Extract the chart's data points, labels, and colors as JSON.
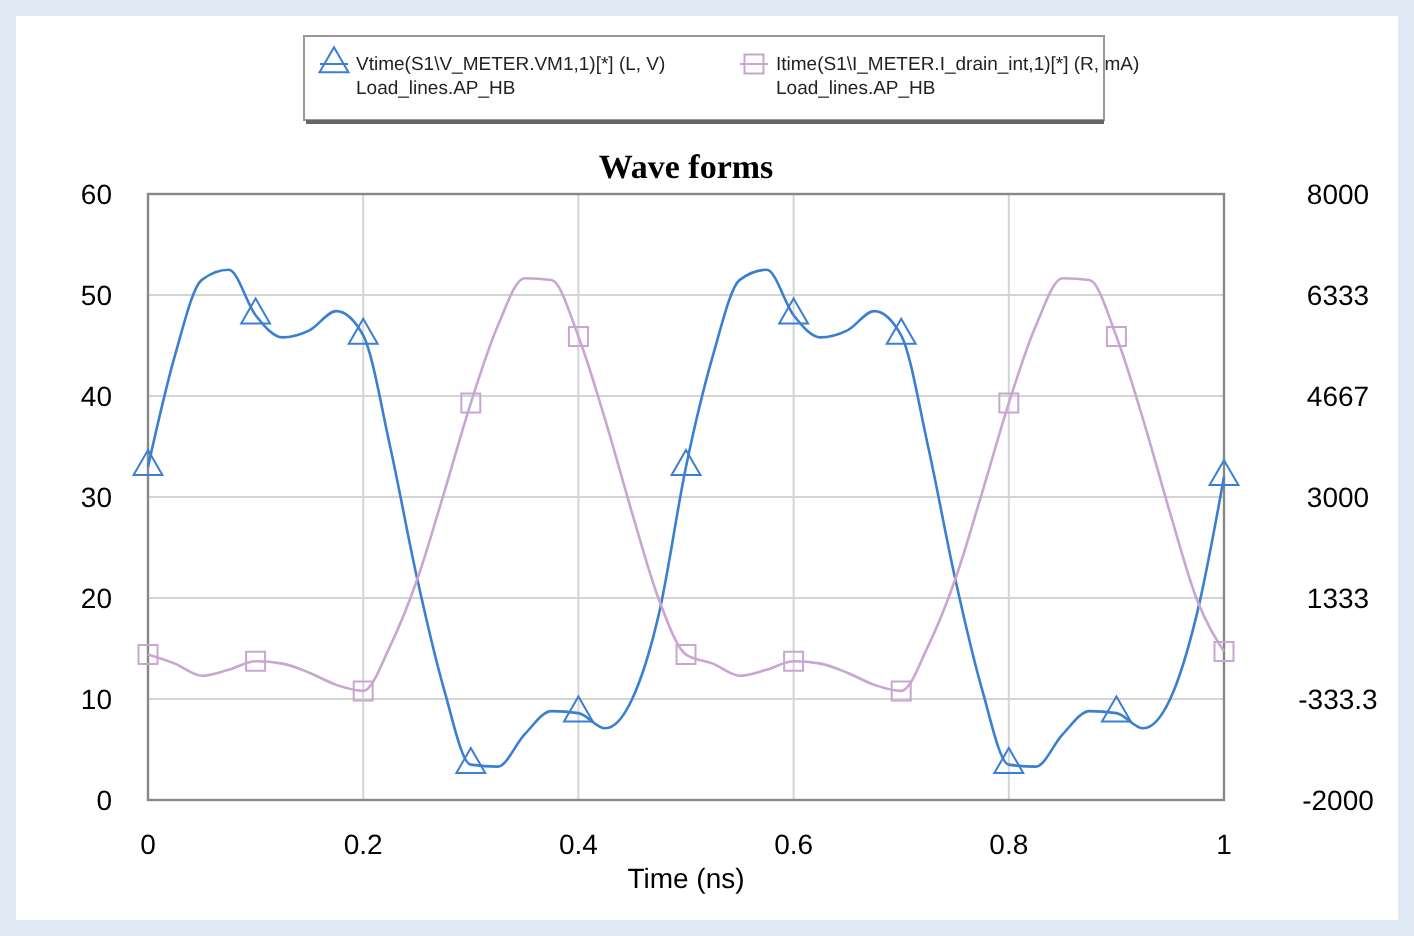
{
  "chart_data": {
    "type": "line",
    "title": "Wave forms",
    "xlabel": "Time (ns)",
    "x": [
      0,
      0.025,
      0.05,
      0.075,
      0.1,
      0.125,
      0.15,
      0.175,
      0.2,
      0.225,
      0.25,
      0.275,
      0.3,
      0.325,
      0.35,
      0.375,
      0.4,
      0.425,
      0.45,
      0.475,
      0.5,
      0.525,
      0.55,
      0.575,
      0.6,
      0.625,
      0.65,
      0.675,
      0.7,
      0.725,
      0.75,
      0.775,
      0.8,
      0.825,
      0.85,
      0.875,
      0.9,
      0.925,
      0.95,
      0.975,
      1
    ],
    "series": [
      {
        "name": "Vtime(S1\\V_METER.VM1,1)[*] (L, V)\nLoad_lines.AP_HB",
        "color": "#3a7fd0",
        "marker": "none",
        "values": [
          33,
          44,
          51.5,
          52.5,
          48,
          45.8,
          46.5,
          48.4,
          46,
          35,
          22,
          11,
          3.5,
          3.3,
          6.5,
          8.8,
          8.6,
          7.1,
          10,
          18.5,
          33,
          44,
          51.5,
          52.5,
          48,
          45.8,
          46.5,
          48.4,
          46,
          35,
          22,
          11,
          3.5,
          3.3,
          6.5,
          8.8,
          8.6,
          7.1,
          10,
          18.5,
          32
        ]
      },
      {
        "name": "Itime(S1\\I_METER.I_drain_int,1)[*] (R, mA)\nLoad_lines.AP_HB",
        "color": "#c9a6d2",
        "marker": "none",
        "axis": "y2",
        "values": [
          400,
          250,
          50,
          150,
          290,
          250,
          100,
          -100,
          -200,
          540,
          1630,
          3060,
          4550,
          5820,
          6610,
          6580,
          5650,
          4270,
          2730,
          1300,
          400,
          250,
          50,
          150,
          290,
          250,
          100,
          -100,
          -200,
          540,
          1630,
          3060,
          4550,
          5820,
          6610,
          6580,
          5650,
          4270,
          2730,
          1300,
          450
        ]
      },
      {
        "type": "scatter",
        "color": "#3a7fd0",
        "marker": "triangle",
        "x": [
          0,
          0.1,
          0.2,
          0.3,
          0.4,
          0.5,
          0.6,
          0.7,
          0.8,
          0.9,
          1
        ],
        "values": [
          33,
          48,
          46,
          3.5,
          8.6,
          33,
          48,
          46,
          3.5,
          8.6,
          32
        ]
      },
      {
        "type": "scatter",
        "color": "#c9a6d2",
        "marker": "square",
        "axis": "y2",
        "x": [
          0,
          0.1,
          0.2,
          0.3,
          0.4,
          0.5,
          0.6,
          0.7,
          0.8,
          0.9,
          1
        ],
        "values": [
          400,
          290,
          -200,
          4550,
          5650,
          400,
          290,
          -200,
          4550,
          5650,
          450
        ]
      }
    ],
    "xlim": [
      0,
      1
    ],
    "xticks": [
      0,
      0.2,
      0.4,
      0.6,
      0.8,
      1
    ],
    "ylim": [
      0,
      60
    ],
    "yticks": [
      0,
      10,
      20,
      30,
      40,
      50,
      60
    ],
    "y2lim": [
      -2000,
      8000
    ],
    "y2ticks": [
      -2000,
      {
        "value": -333.3,
        "label": "-333.3"
      },
      {
        "value": 1333.3,
        "label": "1333"
      },
      3000,
      {
        "value": 4666.7,
        "label": "4667"
      },
      {
        "value": 6333.3,
        "label": "6333"
      },
      8000
    ],
    "grid": true,
    "legend": "top",
    "line_style": "solid"
  }
}
